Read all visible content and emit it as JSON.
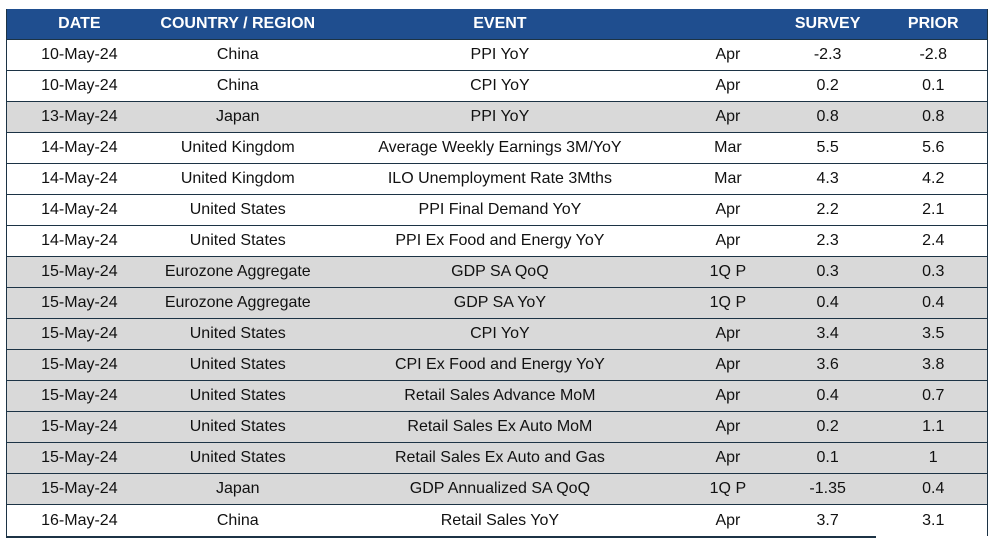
{
  "header": {
    "date": "DATE",
    "country": "COUNTRY / REGION",
    "event": "EVENT",
    "period": "",
    "survey": "SURVEY",
    "prior": "PRIOR"
  },
  "colors": {
    "header_bg": "#1f4e8f",
    "header_text": "#ffffff",
    "shaded_row": "#d9d9d9",
    "border": "#1c3345"
  },
  "rows": [
    {
      "date": "10-May-24",
      "country": "China",
      "event": "PPI YoY",
      "period": "Apr",
      "survey": "-2.3",
      "prior": "-2.8",
      "shade": "white"
    },
    {
      "date": "10-May-24",
      "country": "China",
      "event": "CPI YoY",
      "period": "Apr",
      "survey": "0.2",
      "prior": "0.1",
      "shade": "white"
    },
    {
      "date": "13-May-24",
      "country": "Japan",
      "event": "PPI YoY",
      "period": "Apr",
      "survey": "0.8",
      "prior": "0.8",
      "shade": "gray"
    },
    {
      "date": "14-May-24",
      "country": "United Kingdom",
      "event": "Average Weekly Earnings 3M/YoY",
      "period": "Mar",
      "survey": "5.5",
      "prior": "5.6",
      "shade": "white"
    },
    {
      "date": "14-May-24",
      "country": "United Kingdom",
      "event": "ILO Unemployment Rate 3Mths",
      "period": "Mar",
      "survey": "4.3",
      "prior": "4.2",
      "shade": "white"
    },
    {
      "date": "14-May-24",
      "country": "United States",
      "event": "PPI Final Demand YoY",
      "period": "Apr",
      "survey": "2.2",
      "prior": "2.1",
      "shade": "white"
    },
    {
      "date": "14-May-24",
      "country": "United States",
      "event": "PPI Ex Food and Energy YoY",
      "period": "Apr",
      "survey": "2.3",
      "prior": "2.4",
      "shade": "white"
    },
    {
      "date": "15-May-24",
      "country": "Eurozone Aggregate",
      "event": "GDP SA QoQ",
      "period": "1Q P",
      "survey": "0.3",
      "prior": "0.3",
      "shade": "gray"
    },
    {
      "date": "15-May-24",
      "country": "Eurozone Aggregate",
      "event": "GDP SA YoY",
      "period": "1Q P",
      "survey": "0.4",
      "prior": "0.4",
      "shade": "gray"
    },
    {
      "date": "15-May-24",
      "country": "United States",
      "event": "CPI YoY",
      "period": "Apr",
      "survey": "3.4",
      "prior": "3.5",
      "shade": "gray"
    },
    {
      "date": "15-May-24",
      "country": "United States",
      "event": "CPI Ex Food and Energy YoY",
      "period": "Apr",
      "survey": "3.6",
      "prior": "3.8",
      "shade": "gray"
    },
    {
      "date": "15-May-24",
      "country": "United States",
      "event": "Retail Sales Advance MoM",
      "period": "Apr",
      "survey": "0.4",
      "prior": "0.7",
      "shade": "gray"
    },
    {
      "date": "15-May-24",
      "country": "United States",
      "event": "Retail Sales Ex Auto MoM",
      "period": "Apr",
      "survey": "0.2",
      "prior": "1.1",
      "shade": "gray"
    },
    {
      "date": "15-May-24",
      "country": "United States",
      "event": "Retail Sales Ex Auto and Gas",
      "period": "Apr",
      "survey": "0.1",
      "prior": "1",
      "shade": "gray"
    },
    {
      "date": "15-May-24",
      "country": "Japan",
      "event": "GDP Annualized SA QoQ",
      "period": "1Q P",
      "survey": "-1.35",
      "prior": "0.4",
      "shade": "gray"
    },
    {
      "date": "16-May-24",
      "country": "China",
      "event": "Retail Sales YoY",
      "period": "Apr",
      "survey": "3.7",
      "prior": "3.1",
      "shade": "white"
    }
  ]
}
